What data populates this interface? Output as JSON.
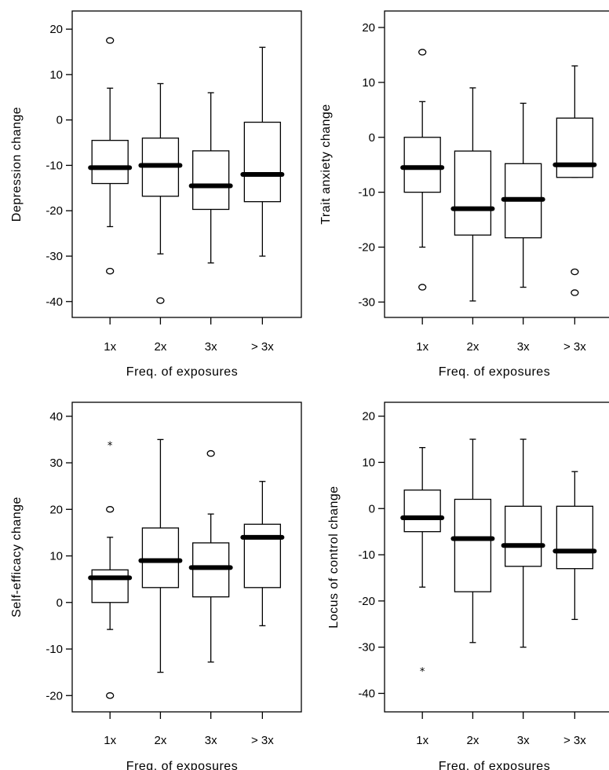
{
  "chart_data": [
    {
      "type": "boxplot",
      "xlabel": "Freq. of exposures",
      "ylabel": "Depression change",
      "categories": [
        "1x",
        "2x",
        "3x",
        "> 3x"
      ],
      "ylim": [
        -43.5,
        24
      ],
      "yticks": [
        20,
        10,
        0,
        -10,
        -20,
        -30,
        -40
      ],
      "boxes": [
        {
          "category": "1x",
          "whisker_low": -23.5,
          "q1": -14,
          "median": -10.5,
          "q3": -4.5,
          "whisker_high": 7,
          "outliers": [
            {
              "value": 17.5,
              "marker": "circle"
            },
            {
              "value": -33.3,
              "marker": "circle"
            }
          ]
        },
        {
          "category": "2x",
          "whisker_low": -29.5,
          "q1": -16.8,
          "median": -10,
          "q3": -4,
          "whisker_high": 8,
          "outliers": [
            {
              "value": -39.8,
              "marker": "circle"
            }
          ]
        },
        {
          "category": "3x",
          "whisker_low": -31.5,
          "q1": -19.7,
          "median": -14.5,
          "q3": -6.8,
          "whisker_high": 6,
          "outliers": []
        },
        {
          "category": "> 3x",
          "whisker_low": -30,
          "q1": -18,
          "median": -12,
          "q3": -0.5,
          "whisker_high": 16,
          "outliers": []
        }
      ]
    },
    {
      "type": "boxplot",
      "xlabel": "Freq. of exposures",
      "ylabel": "Trait anxiety change",
      "categories": [
        "1x",
        "2x",
        "3x",
        "> 3x"
      ],
      "ylim": [
        -32.8,
        23
      ],
      "yticks": [
        20,
        10,
        0,
        -10,
        -20,
        -30
      ],
      "boxes": [
        {
          "category": "1x",
          "whisker_low": -20,
          "q1": -10,
          "median": -5.5,
          "q3": 0,
          "whisker_high": 6.5,
          "outliers": [
            {
              "value": 15.5,
              "marker": "circle"
            },
            {
              "value": -27.3,
              "marker": "circle"
            }
          ]
        },
        {
          "category": "2x",
          "whisker_low": -29.8,
          "q1": -17.8,
          "median": -13,
          "q3": -2.5,
          "whisker_high": 9,
          "outliers": []
        },
        {
          "category": "3x",
          "whisker_low": -27.3,
          "q1": -18.3,
          "median": -11.3,
          "q3": -4.8,
          "whisker_high": 6.2,
          "outliers": []
        },
        {
          "category": "> 3x",
          "whisker_low": -7.3,
          "q1": -7.3,
          "median": -5,
          "q3": 3.5,
          "whisker_high": 13,
          "outliers": [
            {
              "value": -24.5,
              "marker": "circle"
            },
            {
              "value": -28.3,
              "marker": "circle"
            }
          ]
        }
      ]
    },
    {
      "type": "boxplot",
      "xlabel": "Freq. of exposures",
      "ylabel": "Self-efficacy change",
      "categories": [
        "1x",
        "2x",
        "3x",
        "> 3x"
      ],
      "ylim": [
        -23.5,
        43
      ],
      "yticks": [
        40,
        30,
        20,
        10,
        0,
        -10,
        -20
      ],
      "boxes": [
        {
          "category": "1x",
          "whisker_low": -5.8,
          "q1": 0,
          "median": 5.3,
          "q3": 7,
          "whisker_high": 14,
          "outliers": [
            {
              "value": 34,
              "marker": "star"
            },
            {
              "value": 20,
              "marker": "circle"
            },
            {
              "value": -20,
              "marker": "circle"
            }
          ]
        },
        {
          "category": "2x",
          "whisker_low": -15,
          "q1": 3.2,
          "median": 9,
          "q3": 16,
          "whisker_high": 35,
          "outliers": []
        },
        {
          "category": "3x",
          "whisker_low": -12.8,
          "q1": 1.2,
          "median": 7.5,
          "q3": 12.8,
          "whisker_high": 19,
          "outliers": [
            {
              "value": 32,
              "marker": "circle"
            }
          ]
        },
        {
          "category": "> 3x",
          "whisker_low": -5,
          "q1": 3.2,
          "median": 14,
          "q3": 16.8,
          "whisker_high": 26,
          "outliers": []
        }
      ]
    },
    {
      "type": "boxplot",
      "xlabel": "Freq. of exposures",
      "ylabel": "Locus of control change",
      "categories": [
        "1x",
        "2x",
        "3x",
        "> 3x"
      ],
      "ylim": [
        -44,
        23
      ],
      "yticks": [
        20,
        10,
        0,
        -10,
        -20,
        -30,
        -40
      ],
      "boxes": [
        {
          "category": "1x",
          "whisker_low": -17,
          "q1": -5,
          "median": -2,
          "q3": 4,
          "whisker_high": 13.2,
          "outliers": [
            {
              "value": -35,
              "marker": "star"
            }
          ]
        },
        {
          "category": "2x",
          "whisker_low": -29,
          "q1": -18,
          "median": -6.5,
          "q3": 2,
          "whisker_high": 15,
          "outliers": []
        },
        {
          "category": "3x",
          "whisker_low": -30,
          "q1": -12.5,
          "median": -8,
          "q3": 0.5,
          "whisker_high": 15,
          "outliers": []
        },
        {
          "category": "> 3x",
          "whisker_low": -24,
          "q1": -13,
          "median": -9.2,
          "q3": 0.5,
          "whisker_high": 8,
          "outliers": []
        }
      ]
    }
  ]
}
